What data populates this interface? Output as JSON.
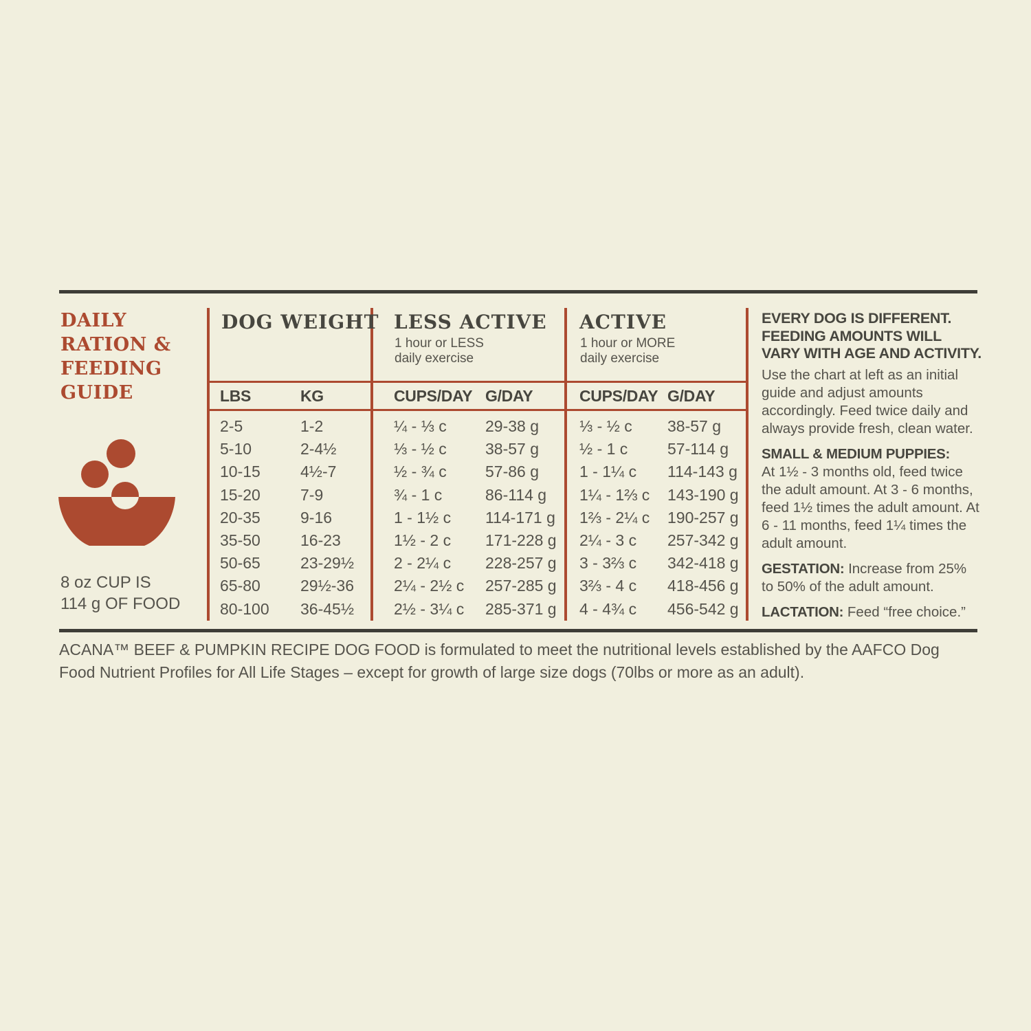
{
  "colors": {
    "background": "#f1efde",
    "accent_red": "#ac4a30",
    "text_dark": "#47463f",
    "text_gray": "#55534c",
    "rule_dark": "#3e3d37"
  },
  "left_panel": {
    "title": "DAILY RATION & FEEDING GUIDE",
    "bowl_icon": "dog-food-bowl-with-kibble-icon",
    "cup_note_line1": "8 oz CUP IS",
    "cup_note_line2": "114 g OF FOOD"
  },
  "table": {
    "dog_weight": {
      "header": "DOG WEIGHT",
      "sub": [
        "LBS",
        "KG"
      ]
    },
    "less_active": {
      "header": "LESS ACTIVE",
      "subtitle1": "1 hour or LESS",
      "subtitle2": "daily exercise",
      "sub": [
        "CUPS/DAY",
        "G/DAY"
      ]
    },
    "active": {
      "header": "ACTIVE",
      "subtitle1": "1 hour or MORE",
      "subtitle2": "daily exercise",
      "sub": [
        "CUPS/DAY",
        "G/DAY"
      ]
    },
    "rows": [
      {
        "lbs": "2-5",
        "kg": "1-2",
        "la_cups": "¼ - ⅓ c",
        "la_g": "29-38 g",
        "a_cups": "⅓ - ½ c",
        "a_g": "38-57 g"
      },
      {
        "lbs": "5-10",
        "kg": "2-4½",
        "la_cups": "⅓ - ½ c",
        "la_g": "38-57 g",
        "a_cups": "½ - 1 c",
        "a_g": "57-114 g"
      },
      {
        "lbs": "10-15",
        "kg": "4½-7",
        "la_cups": "½ - ¾ c",
        "la_g": "57-86 g",
        "a_cups": "1 - 1¼ c",
        "a_g": "114-143 g"
      },
      {
        "lbs": "15-20",
        "kg": "7-9",
        "la_cups": "¾ - 1 c",
        "la_g": "86-114 g",
        "a_cups": "1¼ - 1⅔ c",
        "a_g": "143-190 g"
      },
      {
        "lbs": "20-35",
        "kg": "9-16",
        "la_cups": "1 - 1½ c",
        "la_g": "114-171 g",
        "a_cups": "1⅔ - 2¼ c",
        "a_g": "190-257 g"
      },
      {
        "lbs": "35-50",
        "kg": "16-23",
        "la_cups": "1½ - 2 c",
        "la_g": "171-228 g",
        "a_cups": "2¼ - 3 c",
        "a_g": "257-342 g"
      },
      {
        "lbs": "50-65",
        "kg": "23-29½",
        "la_cups": "2 - 2¼ c",
        "la_g": "228-257 g",
        "a_cups": "3 - 3⅔ c",
        "a_g": "342-418 g"
      },
      {
        "lbs": "65-80",
        "kg": "29½-36",
        "la_cups": "2¼ - 2½ c",
        "la_g": "257-285 g",
        "a_cups": "3⅔ - 4 c",
        "a_g": "418-456 g"
      },
      {
        "lbs": "80-100",
        "kg": "36-45½",
        "la_cups": "2½ - 3¼ c",
        "la_g": "285-371 g",
        "a_cups": "4 - 4¾ c",
        "a_g": "456-542 g"
      }
    ]
  },
  "info_column": {
    "heading": "EVERY DOG IS DIFFERENT. FEEDING AMOUNTS WILL VARY WITH AGE AND ACTIVITY.",
    "paragraph": "Use the chart at left as an initial guide and adjust amounts accordingly. Feed twice daily and always provide fresh, clean water.",
    "puppies_label": "SMALL & MEDIUM PUPPIES:",
    "puppies_text": "At 1½ - 3 months old, feed twice the adult amount. At 3 - 6 months, feed 1½ times the adult amount. At 6 - 11 months, feed 1¼ times the adult amount.",
    "gestation_label": "GESTATION:",
    "gestation_text": " Increase from 25% to 50% of the adult amount.",
    "lactation_label": "LACTATION:",
    "lactation_text": " Feed “free choice.”"
  },
  "footer": {
    "note": "ACANA™ BEEF & PUMPKIN RECIPE DOG FOOD is formulated to meet the nutritional levels established by the AAFCO Dog Food Nutrient Profiles for All Life Stages – except for growth of large size dogs (70lbs or more as an adult)."
  }
}
